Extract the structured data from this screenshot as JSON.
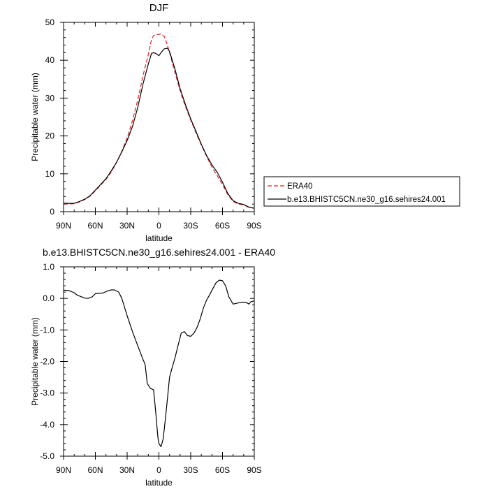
{
  "chart_data": [
    {
      "type": "line",
      "title": "DJF",
      "xlabel": "latitude",
      "ylabel": "Precipitable water (mm)",
      "xlim": [
        90,
        -90
      ],
      "ylim": [
        0,
        50
      ],
      "x_ticks": [
        90,
        60,
        30,
        0,
        -30,
        -60,
        -90
      ],
      "x_tick_labels": [
        "90N",
        "60N",
        "30N",
        "0",
        "30S",
        "60S",
        "90S"
      ],
      "y_ticks": [
        0,
        10,
        20,
        30,
        40,
        50
      ],
      "y_tick_labels": [
        "0",
        "10",
        "20",
        "30",
        "40",
        "50"
      ],
      "legend_placement": "outside-right",
      "series": [
        {
          "name": "ERA40",
          "color": "#dd2222",
          "dash": "dashed",
          "x": [
            90,
            80,
            75,
            70,
            65,
            60,
            55,
            50,
            45,
            40,
            35,
            30,
            25,
            20,
            15,
            10,
            7,
            5,
            3,
            0,
            -2,
            -5,
            -8,
            -10,
            -15,
            -20,
            -25,
            -30,
            -35,
            -40,
            -45,
            -50,
            -55,
            -60,
            -65,
            -70,
            -75,
            -80,
            -85,
            -90
          ],
          "values": [
            2.0,
            2.1,
            2.6,
            3.2,
            4.1,
            5.5,
            7.0,
            8.5,
            10.5,
            13.0,
            16.0,
            19.5,
            24.0,
            29.5,
            36.0,
            41.5,
            45.5,
            46.5,
            46.8,
            46.8,
            47.0,
            46.3,
            44.0,
            42.0,
            36.8,
            32.0,
            27.8,
            24.2,
            20.8,
            17.6,
            14.6,
            11.8,
            9.5,
            7.2,
            4.5,
            2.7,
            2.0,
            1.8,
            1.1,
            0.9
          ]
        },
        {
          "name": "b.e13.BHISTC5CN.ne30_g16.sehires24.001",
          "color": "#000000",
          "dash": "solid",
          "x": [
            90,
            80,
            75,
            70,
            65,
            60,
            55,
            50,
            45,
            40,
            35,
            30,
            25,
            20,
            15,
            10,
            7,
            5,
            3,
            0,
            -2,
            -5,
            -8,
            -10,
            -15,
            -20,
            -25,
            -30,
            -35,
            -40,
            -45,
            -50,
            -55,
            -60,
            -65,
            -70,
            -75,
            -80,
            -85,
            -90
          ],
          "values": [
            2.2,
            2.2,
            2.7,
            3.3,
            4.2,
            5.7,
            7.2,
            8.7,
            10.8,
            13.0,
            15.8,
            18.8,
            22.5,
            27.5,
            33.8,
            39.0,
            41.8,
            42.0,
            41.8,
            41.2,
            42.0,
            43.0,
            43.2,
            42.3,
            37.8,
            32.5,
            28.3,
            24.5,
            21.2,
            17.8,
            14.8,
            12.4,
            10.4,
            7.8,
            4.8,
            2.9,
            2.2,
            1.9,
            1.2,
            0.9
          ]
        }
      ]
    },
    {
      "type": "line",
      "title": "b.e13.BHISTC5CN.ne30_g16.sehires24.001 - ERA40",
      "xlabel": "latitude",
      "ylabel": "Precipitable water (mm)",
      "xlim": [
        90,
        -90
      ],
      "ylim": [
        -5.0,
        1.0
      ],
      "x_ticks": [
        90,
        60,
        30,
        0,
        -30,
        -60,
        -90
      ],
      "x_tick_labels": [
        "90N",
        "60N",
        "30N",
        "0",
        "30S",
        "60S",
        "90S"
      ],
      "y_ticks": [
        1.0,
        0.0,
        -1.0,
        -2.0,
        -3.0,
        -4.0,
        -5.0
      ],
      "y_tick_labels": [
        "1.0",
        "0.0",
        "-1.0",
        "-2.0",
        "-3.0",
        "-4.0",
        "-5.0"
      ],
      "series": [
        {
          "color": "#000000",
          "dash": "solid",
          "x": [
            90,
            85,
            80,
            77,
            73,
            70,
            67,
            63,
            60,
            57,
            53,
            49,
            45,
            42,
            38,
            35,
            30,
            25,
            20,
            16,
            13,
            11,
            8,
            5,
            3,
            1,
            0,
            -2,
            -4,
            -6,
            -8,
            -10,
            -12,
            -15,
            -18,
            -21,
            -24,
            -27,
            -30,
            -33,
            -36,
            -39,
            -42,
            -45,
            -48,
            -51,
            -54,
            -57,
            -60,
            -63,
            -66,
            -70,
            -74,
            -78,
            -82,
            -85,
            -87,
            -90
          ],
          "values": [
            0.26,
            0.25,
            0.18,
            0.1,
            0.05,
            0.01,
            0.0,
            0.05,
            0.15,
            0.16,
            0.17,
            0.23,
            0.27,
            0.27,
            0.2,
            0.0,
            -0.55,
            -1.05,
            -1.5,
            -1.85,
            -2.1,
            -2.7,
            -2.85,
            -2.9,
            -3.6,
            -4.4,
            -4.6,
            -4.7,
            -4.45,
            -3.85,
            -3.2,
            -2.5,
            -2.25,
            -1.9,
            -1.5,
            -1.1,
            -1.05,
            -1.18,
            -1.2,
            -1.1,
            -0.92,
            -0.65,
            -0.3,
            -0.05,
            0.12,
            0.32,
            0.5,
            0.58,
            0.56,
            0.4,
            0.05,
            -0.18,
            -0.15,
            -0.12,
            -0.12,
            -0.18,
            -0.1,
            -0.08
          ]
        }
      ]
    }
  ]
}
